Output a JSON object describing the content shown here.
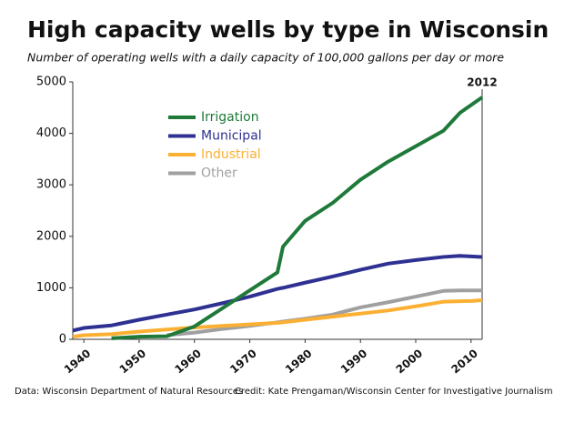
{
  "chart_data": {
    "type": "line",
    "title": "High capacity wells by type in Wisconsin",
    "subtitle": "Number of operating wells with a daily capacity of 100,000 gallons per day or more",
    "annotation": "2012",
    "source": "Data: Wisconsin Department of Natural Resources",
    "credit": "Credit: Kate Prengaman/Wisconsin Center for Investigative Journalism",
    "x": [
      1938,
      1940,
      1945,
      1950,
      1955,
      1960,
      1965,
      1970,
      1975,
      1976,
      1980,
      1985,
      1990,
      1995,
      2000,
      2005,
      2008,
      2010,
      2012
    ],
    "series": [
      {
        "name": "Irrigation",
        "color": "#1f7a3a",
        "values": [
          null,
          null,
          20,
          50,
          60,
          250,
          600,
          950,
          1300,
          1800,
          2300,
          2650,
          3100,
          3450,
          3750,
          4050,
          4400,
          4550,
          4700
        ]
      },
      {
        "name": "Municipal",
        "color": "#2e3192",
        "values": [
          170,
          220,
          270,
          380,
          480,
          580,
          700,
          830,
          980,
          1000,
          1100,
          1220,
          1350,
          1470,
          1540,
          1600,
          1620,
          1610,
          1600
        ]
      },
      {
        "name": "Industrial",
        "color": "#fbb034",
        "values": [
          50,
          80,
          100,
          150,
          190,
          230,
          260,
          290,
          320,
          330,
          380,
          440,
          500,
          560,
          640,
          730,
          740,
          745,
          760
        ]
      },
      {
        "name": "Other",
        "color": "#a0a0a0",
        "values": [
          null,
          null,
          null,
          null,
          80,
          130,
          200,
          260,
          330,
          345,
          400,
          480,
          620,
          720,
          830,
          940,
          950,
          950,
          950
        ]
      }
    ],
    "xlim": [
      1938,
      2012
    ],
    "xticks": [
      1940,
      1950,
      1960,
      1970,
      1980,
      1990,
      2000,
      2010
    ],
    "ylim": [
      0,
      5000
    ],
    "yticks": [
      0,
      1000,
      2000,
      3000,
      4000,
      5000
    ],
    "grid": false,
    "legend": "upper-left"
  }
}
